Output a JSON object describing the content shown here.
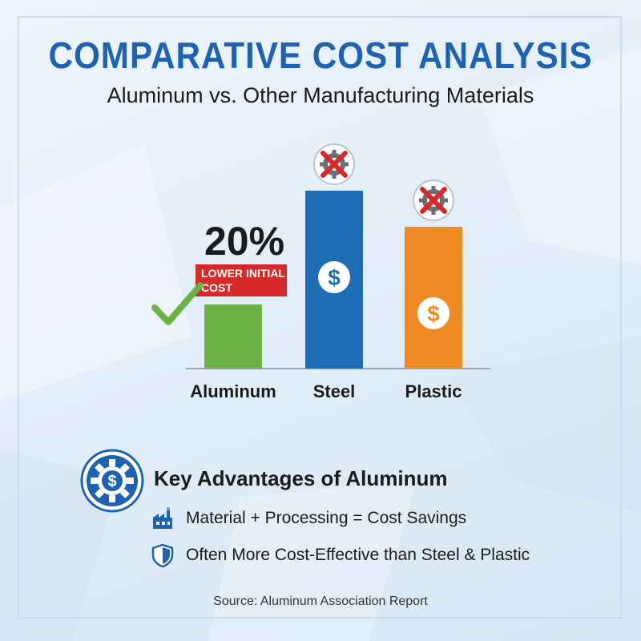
{
  "header": {
    "title": "COMPARATIVE COST ANALYSIS",
    "subtitle": "Aluminum vs. Other Manufacturing Materials"
  },
  "chart_data": {
    "type": "bar",
    "categories": [
      "Aluminum",
      "Steel",
      "Plastic"
    ],
    "values": [
      80,
      222,
      177
    ],
    "value_units": "relative bar height (unlabeled axis)",
    "colors": [
      "#6cb246",
      "#1f6db5",
      "#f08a24"
    ],
    "annotations": {
      "highlight_value": "20%",
      "highlight_label_line1": "LOWER INITIAL",
      "highlight_label_line2": "COST",
      "aluminum_marker": "check-icon",
      "steel_marker": "crossed-gear-icon",
      "plastic_marker": "crossed-gear-icon",
      "bar_icon": "dollar-icon"
    },
    "badge_color": "#d62a2a",
    "grid": false
  },
  "advantages": {
    "title": "Key Advantages of Aluminum",
    "main_icon": "gear-dollar-icon",
    "items": [
      {
        "icon": "factory-icon",
        "text": "Material + Processing = Cost Savings"
      },
      {
        "icon": "shield-icon",
        "text": "Often More Cost-Effective than Steel & Plastic"
      }
    ]
  },
  "footer": {
    "source": "Source: Aluminum Association Report"
  },
  "colors": {
    "accent": "#1f63b0",
    "green": "#6cb246",
    "blue": "#1f6db5",
    "orange": "#f08a24",
    "red": "#d62a2a"
  }
}
